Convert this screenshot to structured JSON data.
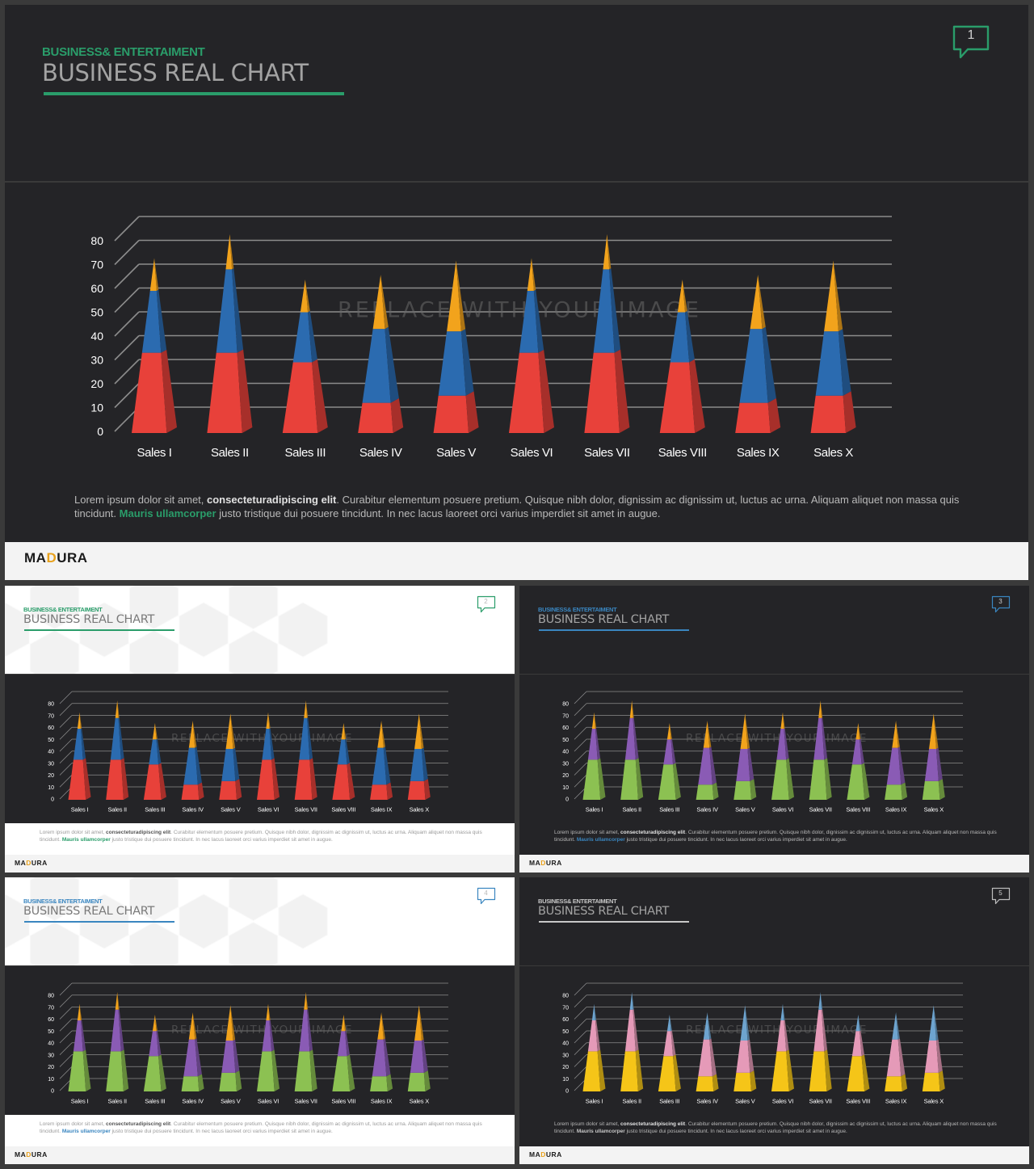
{
  "subtitle": "BUSINESS& ENTERTAIMENT",
  "title": "BUSINESS REAL CHART",
  "watermark": "REPLACE WITH YOUR IMAGE",
  "body": {
    "p1": "Lorem ipsum dolor sit amet, ",
    "bold": "consecteturadipiscing elit",
    "p2": ". Curabitur elementum posuere pretium. Quisque nibh dolor, dignissim ac dignissim ut, luctus ac urna. Aliquam aliquet non massa quis tincidunt. ",
    "link": "Mauris ullamcorper",
    "p3": " justo tristique dui posuere tincidunt. In nec lacus laoreet orci varius imperdiet sit amet in augue."
  },
  "logo": {
    "a": "MA",
    "b": "D",
    "c": "URA"
  },
  "slides": [
    {
      "number": "1",
      "theme": "dark",
      "accent": "#2a9d6a",
      "body_accent": "#2a9d6a",
      "colors": [
        "#e8413a",
        "#2b6bb0",
        "#f2a31c"
      ]
    },
    {
      "number": "2",
      "theme": "light",
      "accent": "#2a9d6a",
      "body_accent": "#2a9d6a",
      "colors": [
        "#e8413a",
        "#2b6bb0",
        "#f2a31c"
      ]
    },
    {
      "number": "3",
      "theme": "dark",
      "accent": "#3a86c0",
      "body_accent": "#3a86c0",
      "colors": [
        "#8cc152",
        "#8a5bb5",
        "#f2a31c"
      ]
    },
    {
      "number": "4",
      "theme": "light",
      "accent": "#3a86c0",
      "body_accent": "#3a86c0",
      "colors": [
        "#8cc152",
        "#8a5bb5",
        "#f2a31c"
      ]
    },
    {
      "number": "5",
      "theme": "dark",
      "accent": "#c8c8c8",
      "body_accent": "#c8c8c8",
      "colors": [
        "#f5c518",
        "#e59ab8",
        "#6ea4cf"
      ]
    }
  ],
  "chart_data": {
    "type": "bar",
    "subtype": "stacked-3d-cone",
    "categories": [
      "Sales I",
      "Sales II",
      "Sales III",
      "Sales IV",
      "Sales V",
      "Sales VI",
      "Sales VII",
      "Sales VIII",
      "Sales IX",
      "Sales X"
    ],
    "series": [
      {
        "values": [
          33,
          33,
          29,
          12,
          15,
          33,
          33,
          29,
          12,
          15
        ]
      },
      {
        "values": [
          26,
          35,
          21,
          31,
          27,
          26,
          35,
          21,
          31,
          27
        ]
      },
      {
        "values": [
          11,
          12,
          11,
          20,
          27,
          11,
          12,
          11,
          20,
          27
        ]
      }
    ],
    "yticks": [
      0,
      10,
      20,
      30,
      40,
      50,
      60,
      70,
      80
    ],
    "ylim": [
      0,
      80
    ],
    "grid": true,
    "legend": "none"
  }
}
